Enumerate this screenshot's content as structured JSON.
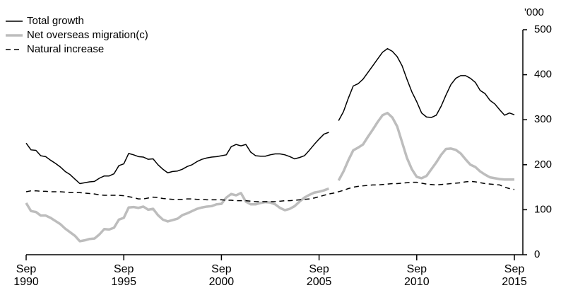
{
  "chart_data": {
    "type": "line",
    "y_unit": "'000",
    "categories": [
      "Sep 1990",
      null,
      null,
      null,
      null,
      null,
      null,
      null,
      null,
      null,
      null,
      null,
      null,
      null,
      null,
      null,
      null,
      null,
      null,
      null,
      "Sep 1995",
      null,
      null,
      null,
      null,
      null,
      null,
      null,
      null,
      null,
      null,
      null,
      null,
      null,
      null,
      null,
      null,
      null,
      null,
      null,
      "Sep 2000",
      null,
      null,
      null,
      null,
      null,
      null,
      null,
      null,
      null,
      null,
      null,
      null,
      null,
      null,
      null,
      null,
      null,
      null,
      null,
      "Sep 2005",
      null,
      null,
      null,
      null,
      null,
      null,
      null,
      null,
      null,
      null,
      null,
      null,
      null,
      null,
      null,
      null,
      null,
      null,
      null,
      "Sep 2010",
      null,
      null,
      null,
      null,
      null,
      null,
      null,
      null,
      null,
      null,
      null,
      null,
      null,
      null,
      null,
      null,
      null,
      null,
      null,
      "Sep 2015"
    ],
    "series": [
      {
        "name": "Total growth",
        "color": "#000000",
        "line_style": "solid",
        "values": [
          248,
          233,
          232,
          220,
          218,
          210,
          203,
          195,
          185,
          178,
          168,
          158,
          160,
          162,
          163,
          170,
          175,
          175,
          180,
          198,
          202,
          225,
          222,
          218,
          217,
          212,
          213,
          200,
          190,
          182,
          185,
          186,
          190,
          196,
          200,
          207,
          212,
          215,
          217,
          218,
          220,
          222,
          240,
          245,
          242,
          245,
          228,
          220,
          219,
          219,
          222,
          224,
          224,
          222,
          218,
          213,
          216,
          220,
          232,
          245,
          257,
          268,
          272,
          null,
          298,
          318,
          348,
          375,
          380,
          390,
          405,
          420,
          435,
          450,
          458,
          452,
          440,
          420,
          390,
          362,
          340,
          315,
          306,
          305,
          310,
          330,
          355,
          378,
          392,
          398,
          398,
          392,
          383,
          365,
          358,
          343,
          335,
          322,
          310,
          315,
          311
        ]
      },
      {
        "name": "Net overseas migration(c)",
        "color": "#bdbdbd",
        "line_style": "thick",
        "values": [
          115,
          97,
          95,
          87,
          87,
          82,
          75,
          68,
          58,
          50,
          42,
          30,
          32,
          35,
          36,
          45,
          57,
          56,
          60,
          78,
          82,
          105,
          106,
          104,
          107,
          100,
          102,
          88,
          78,
          74,
          77,
          80,
          88,
          92,
          97,
          102,
          105,
          107,
          108,
          112,
          113,
          127,
          135,
          132,
          137,
          118,
          112,
          112,
          115,
          117,
          116,
          112,
          104,
          99,
          102,
          108,
          118,
          127,
          133,
          138,
          140,
          143,
          147,
          null,
          165,
          185,
          210,
          232,
          238,
          245,
          262,
          278,
          295,
          310,
          315,
          305,
          285,
          250,
          215,
          190,
          173,
          170,
          175,
          190,
          205,
          222,
          235,
          236,
          233,
          225,
          212,
          200,
          195,
          185,
          178,
          172,
          170,
          168,
          167,
          167,
          167
        ]
      },
      {
        "name": "Natural increase",
        "color": "#000000",
        "line_style": "dashed",
        "values": [
          140,
          142,
          142,
          141,
          141,
          140,
          140,
          140,
          139,
          138,
          138,
          138,
          137,
          136,
          135,
          133,
          132,
          132,
          132,
          132,
          131,
          129,
          127,
          124,
          124,
          126,
          128,
          127,
          125,
          124,
          123,
          123,
          123,
          124,
          124,
          123,
          123,
          122,
          122,
          122,
          122,
          121,
          121,
          120,
          120,
          120,
          119,
          118,
          118,
          118,
          118,
          118,
          119,
          120,
          120,
          121,
          122,
          123,
          124,
          126,
          129,
          132,
          135,
          137,
          140,
          143,
          147,
          150,
          152,
          153,
          154,
          155,
          155,
          156,
          157,
          158,
          158,
          159,
          160,
          161,
          161,
          159,
          157,
          156,
          155,
          156,
          157,
          158,
          159,
          160,
          162,
          163,
          162,
          160,
          158,
          157,
          156,
          155,
          150,
          147,
          145
        ]
      }
    ],
    "ylim": [
      0,
      500
    ],
    "yticks": [
      0,
      100,
      200,
      300,
      400,
      500
    ],
    "y_axis_side": "right",
    "legend": "top-left"
  }
}
